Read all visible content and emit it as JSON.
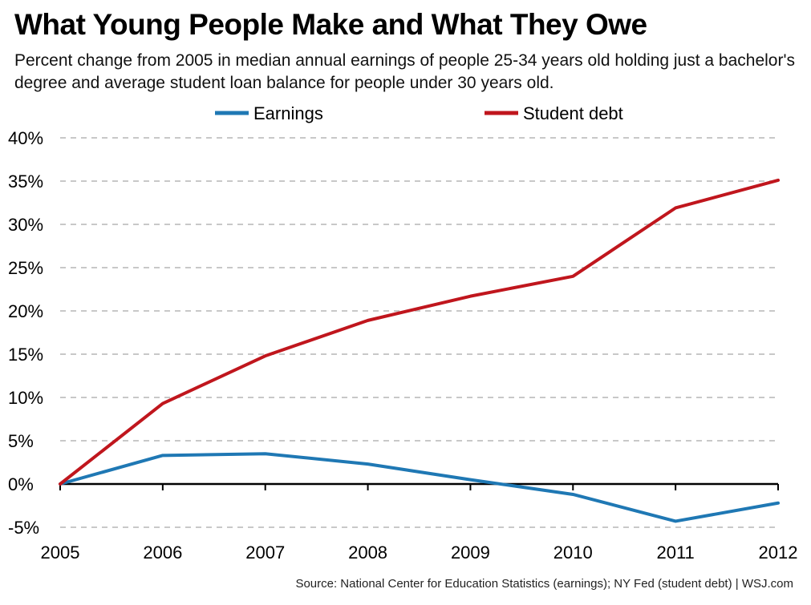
{
  "title": "What Young People Make and What They Owe",
  "subtitle": "Percent change from 2005 in median annual earnings of people 25-34 years old holding just a bachelor's degree and average student loan balance for people under 30 years old.",
  "source": "Source: National Center for Education Statistics (earnings); NY Fed (student debt)  |  WSJ.com",
  "colors": {
    "earnings": "#1f78b4",
    "student_debt": "#c0161d",
    "gridline": "#c8c8c8",
    "axis": "#000000"
  },
  "chart_data": {
    "type": "line",
    "title": "What Young People Make and What They Owe",
    "subtitle": "Percent change from 2005 in median annual earnings of people 25-34 years old holding just a bachelor's degree and average student loan balance for people under 30 years old.",
    "x": [
      "2005",
      "2006",
      "2007",
      "2008",
      "2009",
      "2010",
      "2011",
      "2012"
    ],
    "series": [
      {
        "name": "Earnings",
        "values": [
          0,
          3.3,
          3.5,
          2.3,
          0.5,
          -1.2,
          -4.3,
          -2.2
        ]
      },
      {
        "name": "Student debt",
        "values": [
          0,
          9.3,
          14.8,
          18.9,
          21.7,
          24.0,
          31.9,
          35.1
        ]
      }
    ],
    "ylim": [
      -5,
      40
    ],
    "yticks": [
      -5,
      0,
      5,
      10,
      15,
      20,
      25,
      30,
      35,
      40
    ],
    "ytick_labels": [
      "-5%",
      "0%",
      "5%",
      "10%",
      "15%",
      "20%",
      "25%",
      "30%",
      "35%",
      "40%"
    ],
    "xlabel": "",
    "ylabel": "",
    "grid": "horizontal dashed",
    "legend": "top-center"
  }
}
